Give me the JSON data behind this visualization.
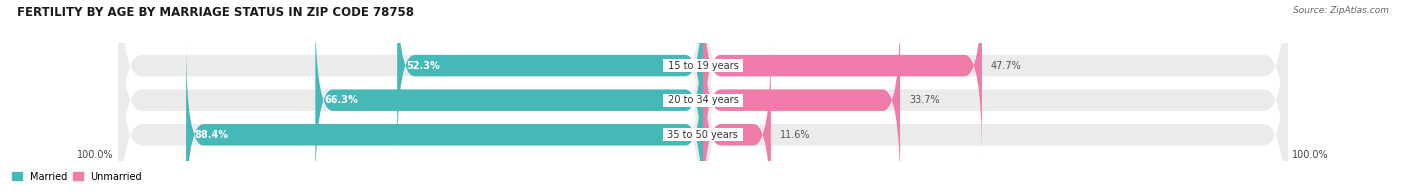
{
  "title": "FERTILITY BY AGE BY MARRIAGE STATUS IN ZIP CODE 78758",
  "source": "Source: ZipAtlas.com",
  "categories": [
    "15 to 19 years",
    "20 to 34 years",
    "35 to 50 years"
  ],
  "married_pct": [
    52.3,
    66.3,
    88.4
  ],
  "unmarried_pct": [
    47.7,
    33.7,
    11.6
  ],
  "married_color": "#45b8b8",
  "unmarried_color": "#f07aaa",
  "bg_color": "#ffffff",
  "bar_bg_color": "#ebebeb",
  "title_fontsize": 8.5,
  "source_fontsize": 6.5,
  "label_fontsize": 7.0,
  "cat_fontsize": 7.0,
  "bar_height": 0.62,
  "bottom_label": "100.0%"
}
